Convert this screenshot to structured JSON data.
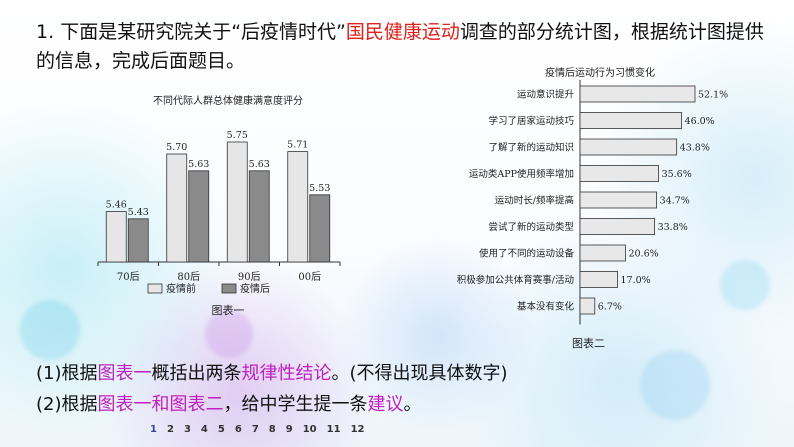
{
  "question": {
    "number": "1.",
    "text_a": "下面是某研究院关于“后疫情时代”",
    "highlight": "国民健康运动",
    "text_b": "调查的部分统计图，根据统计图提供的信息，完成后面题目。"
  },
  "chart1": {
    "title": "不同代际人群总体健康满意度评分",
    "caption": "图表一",
    "legend_before": "疫情前",
    "legend_after": "疫情后"
  },
  "chart2": {
    "title": "疫情后运动行为习惯变化",
    "caption": "图表二"
  },
  "task1": {
    "prefix": "(1)根据",
    "ref": "图表一",
    "mid": "概括出两条",
    "key": "规律性结论",
    "suffix": "。(不得出现具体数字)"
  },
  "task2": {
    "prefix": "(2)根据",
    "ref": "图表一和图表二",
    "mid": "，给中学生提一条",
    "key": "建议",
    "suffix": "。"
  },
  "pager": [
    "1",
    "2",
    "3",
    "4",
    "5",
    "6",
    "7",
    "8",
    "9",
    "10",
    "11",
    "12"
  ],
  "pager_active": "1",
  "chart_data": [
    {
      "type": "bar",
      "title": "不同代际人群总体健康满意度评分",
      "categories": [
        "70后",
        "80后",
        "90后",
        "00后"
      ],
      "series": [
        {
          "name": "疫情前",
          "values": [
            5.46,
            5.7,
            5.75,
            5.71
          ],
          "color": "#e6e6e6"
        },
        {
          "name": "疫情后",
          "values": [
            5.43,
            5.63,
            5.63,
            5.53
          ],
          "color": "#8a8a8a"
        }
      ],
      "ylim": [
        5.25,
        5.8
      ],
      "legend": "bottom"
    },
    {
      "type": "bar",
      "orientation": "horizontal",
      "title": "疫情后运动行为习惯变化",
      "categories": [
        "运动意识提升",
        "学习了居家运动技巧",
        "了解了新的运动知识",
        "运动类APP使用频率增加",
        "运动时长/频率提高",
        "尝试了新的运动类型",
        "使用了不同的运动设备",
        "积极参加公共体育赛事/活动",
        "基本没有变化"
      ],
      "values": [
        52.1,
        46.0,
        43.8,
        35.6,
        34.7,
        33.8,
        20.6,
        17.0,
        6.7
      ],
      "unit": "%",
      "color": "#e8e8e8"
    }
  ]
}
